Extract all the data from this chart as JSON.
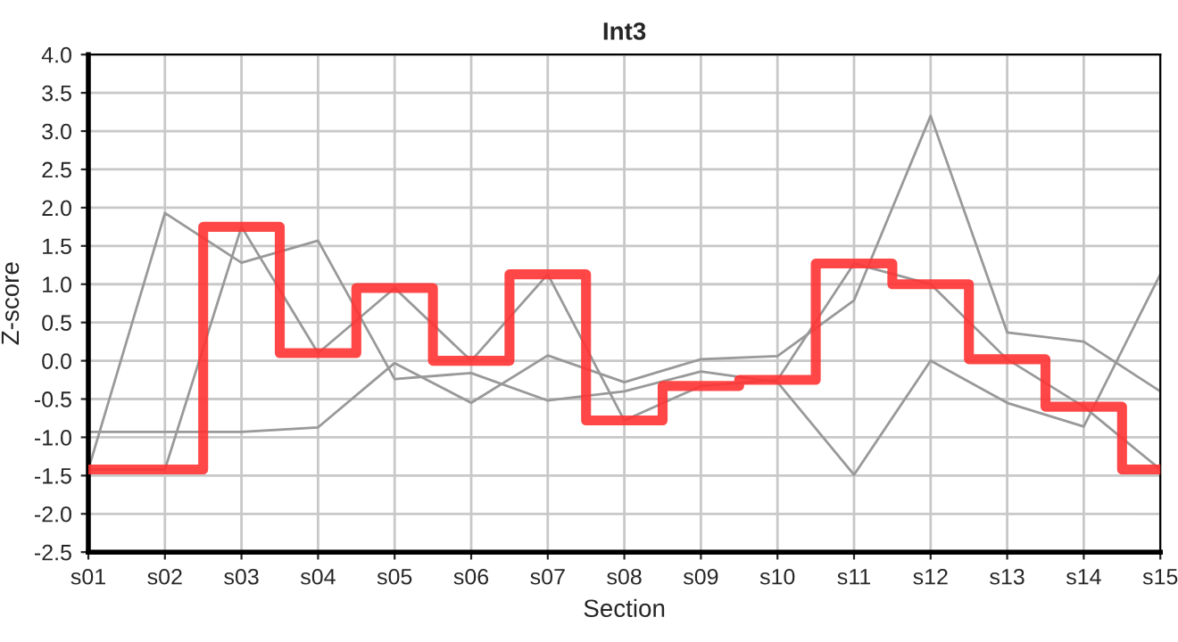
{
  "chart_data": {
    "type": "line",
    "title": "Int3",
    "xlabel": "Section",
    "ylabel": "Z-score",
    "categories": [
      "s01",
      "s02",
      "s03",
      "s04",
      "s05",
      "s06",
      "s07",
      "s08",
      "s09",
      "s10",
      "s11",
      "s12",
      "s13",
      "s14",
      "s15"
    ],
    "series": [
      {
        "color": "#999999",
        "values": [
          -0.93,
          -0.93,
          -0.93,
          -0.87,
          -0.03,
          -0.55,
          0.07,
          -0.28,
          0.02,
          0.06,
          0.79,
          3.2,
          0.37,
          0.25,
          -0.4
        ]
      },
      {
        "color": "#999999",
        "values": [
          -1.42,
          1.93,
          1.28,
          1.57,
          -0.24,
          -0.16,
          -0.52,
          -0.4,
          -0.14,
          -0.28,
          -1.49,
          0.0,
          -0.55,
          -0.86,
          1.13
        ]
      },
      {
        "color": "#999999",
        "values": [
          -1.42,
          -1.42,
          1.75,
          0.1,
          0.95,
          0.0,
          1.13,
          -0.78,
          -0.33,
          -0.25,
          1.27,
          1.0,
          0.02,
          -0.6,
          -1.42
        ]
      },
      {
        "type": "step",
        "color": "#ff3333",
        "values": [
          -1.42,
          -1.42,
          1.75,
          0.1,
          0.95,
          0.0,
          1.13,
          -0.78,
          -0.33,
          -0.25,
          1.27,
          1.0,
          0.02,
          -0.6,
          -1.42
        ]
      }
    ],
    "ylim": [
      -2.5,
      4.0
    ],
    "yticks": [
      {
        "value": -2.5,
        "label": "-2.5"
      },
      {
        "value": -2.0,
        "label": "-2.0"
      },
      {
        "value": -1.5,
        "label": "-1.5"
      },
      {
        "value": -1.0,
        "label": "-1.0"
      },
      {
        "value": -0.5,
        "label": "-0.5"
      },
      {
        "value": 0.0,
        "label": "0.0"
      },
      {
        "value": 0.5,
        "label": "0.5"
      },
      {
        "value": 1.0,
        "label": "1.0"
      },
      {
        "value": 1.5,
        "label": "1.5"
      },
      {
        "value": 2.0,
        "label": "2.0"
      },
      {
        "value": 2.5,
        "label": "2.5"
      },
      {
        "value": 3.0,
        "label": "3.0"
      },
      {
        "value": 3.5,
        "label": "3.5"
      },
      {
        "value": 4.0,
        "label": "4.0"
      }
    ],
    "grid": true,
    "legend": false
  }
}
